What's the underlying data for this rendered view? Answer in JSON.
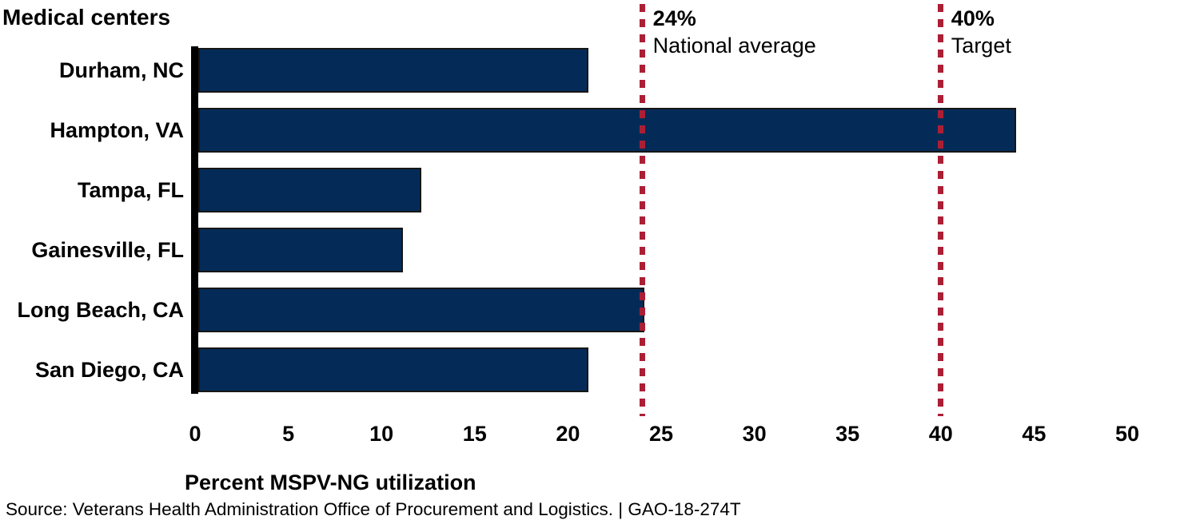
{
  "chart_data": {
    "type": "bar",
    "orientation": "horizontal",
    "title": "Medical centers",
    "categories": [
      "Durham, NC",
      "Hampton, VA",
      "Tampa, FL",
      "Gainesville, FL",
      "Long Beach, CA",
      "San Diego, CA"
    ],
    "values": [
      21,
      44,
      12,
      11,
      24,
      21
    ],
    "xlabel": "Percent MSPV-NG utilization",
    "xlim": [
      0,
      50
    ],
    "xticks": [
      0,
      5,
      10,
      15,
      20,
      25,
      30,
      35,
      40,
      45,
      50
    ],
    "grid": false,
    "legend": "none",
    "reference_lines": [
      {
        "value": 24,
        "value_label": "24%",
        "caption": "National average"
      },
      {
        "value": 40,
        "value_label": "40%",
        "caption": "Target"
      }
    ],
    "bar_color": "#042b57",
    "bar_border_color": "#161616",
    "reference_line_color": "#ab1f35",
    "axis_color": "#000000"
  },
  "source_note": "Source: Veterans Health Administration Office of Procurement and Logistics.  |  GAO-18-274T"
}
